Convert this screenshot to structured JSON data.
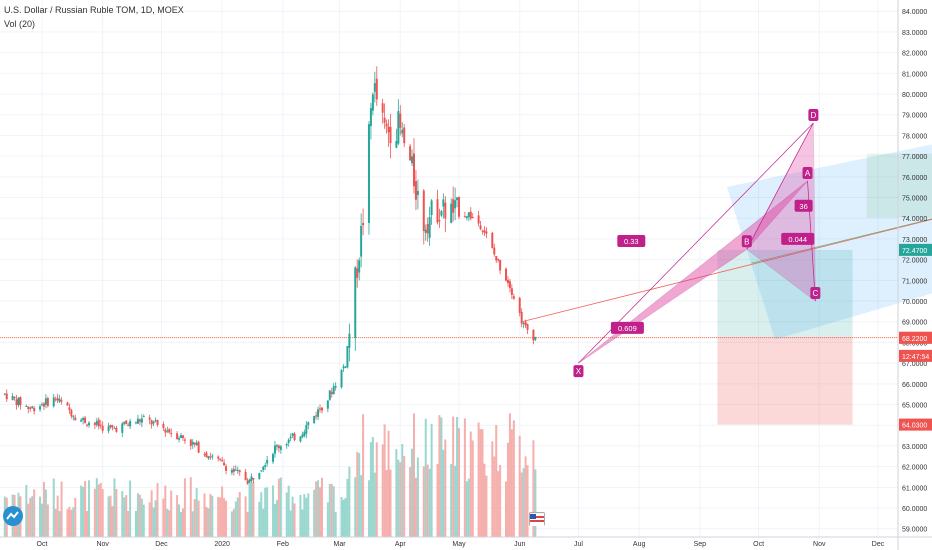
{
  "header": {
    "symbol_line": "U.S. Dollar / Russian Ruble TOM, 1D, MOEX",
    "indicator_line": "Vol (20)"
  },
  "chart_data": {
    "type": "candlestick",
    "y_axis": {
      "range": [
        58.6,
        84.3
      ],
      "ticks": [
        "59.0000",
        "60.0000",
        "61.0000",
        "62.0000",
        "63.0000",
        "64.0000",
        "65.0000",
        "66.0000",
        "67.0000",
        "68.0000",
        "69.0000",
        "70.0000",
        "71.0000",
        "72.0000",
        "73.0000",
        "74.0000",
        "75.0000",
        "76.0000",
        "77.0000",
        "78.0000",
        "79.0000",
        "80.0000",
        "81.0000",
        "82.0000",
        "83.0000",
        "84.0000"
      ]
    },
    "x_axis": {
      "labels": [
        "Oct",
        "Nov",
        "Dec",
        "2020",
        "Feb",
        "Mar",
        "Apr",
        "May",
        "Jun",
        "Jul",
        "Aug",
        "Sep",
        "Oct",
        "Nov",
        "Dec"
      ]
    },
    "price_labels": [
      {
        "value": "72.4700",
        "price": 72.47,
        "color": "#26a69a"
      },
      {
        "value": "68.2500",
        "price": 68.25,
        "color": "#f2dcc0"
      },
      {
        "value": "68.2200",
        "price": 68.22,
        "color": "#ef5350"
      },
      {
        "value": "12:47:54",
        "price": 67.35,
        "color": "#ef5350"
      },
      {
        "value": "64.0300",
        "price": 64.03,
        "color": "#ef5350"
      }
    ],
    "last_price": 68.22,
    "series": [
      {
        "name": "price-anchors",
        "points": [
          {
            "date": "2019-09-12",
            "close": 65.5
          },
          {
            "date": "2019-09-25",
            "close": 64.8
          },
          {
            "date": "2019-10-08",
            "close": 65.3
          },
          {
            "date": "2019-10-20",
            "close": 64.3
          },
          {
            "date": "2019-11-05",
            "close": 63.8
          },
          {
            "date": "2019-11-22",
            "close": 64.3
          },
          {
            "date": "2019-12-12",
            "close": 63.4
          },
          {
            "date": "2019-12-31",
            "close": 62.2
          },
          {
            "date": "2020-01-15",
            "close": 61.3
          },
          {
            "date": "2020-01-28",
            "close": 62.9
          },
          {
            "date": "2020-02-10",
            "close": 63.6
          },
          {
            "date": "2020-02-24",
            "close": 65.3
          },
          {
            "date": "2020-03-04",
            "close": 67.0
          },
          {
            "date": "2020-03-10",
            "close": 71.7
          },
          {
            "date": "2020-03-13",
            "close": 74.0
          },
          {
            "date": "2020-03-18",
            "close": 80.5
          },
          {
            "date": "2020-03-24",
            "close": 78.2
          },
          {
            "date": "2020-03-31",
            "close": 78.5
          },
          {
            "date": "2020-04-07",
            "close": 76.3
          },
          {
            "date": "2020-04-13",
            "close": 73.8
          },
          {
            "date": "2020-04-20",
            "close": 74.5
          },
          {
            "date": "2020-04-28",
            "close": 74.3
          },
          {
            "date": "2020-05-06",
            "close": 74.2
          },
          {
            "date": "2020-05-13",
            "close": 73.6
          },
          {
            "date": "2020-05-20",
            "close": 72.0
          },
          {
            "date": "2020-05-27",
            "close": 70.8
          },
          {
            "date": "2020-06-03",
            "close": 68.8
          },
          {
            "date": "2020-06-09",
            "close": 68.22
          }
        ]
      }
    ],
    "harmonic_pattern": {
      "points": [
        {
          "label": "X",
          "date": "2020-07-01",
          "price": 67.0
        },
        {
          "label": "A",
          "date": "2020-10-26",
          "price": 75.8
        },
        {
          "label": "B",
          "date": "2020-09-25",
          "price": 72.5
        },
        {
          "label": "C",
          "date": "2020-10-30",
          "price": 70.0
        },
        {
          "label": "D",
          "date": "2020-10-29",
          "price": 78.6
        }
      ],
      "ratios": [
        "0.33",
        "0.609",
        "0.044",
        "36"
      ]
    },
    "position_tool": {
      "entry": 68.25,
      "target": 72.47,
      "stop": 64.03
    }
  }
}
